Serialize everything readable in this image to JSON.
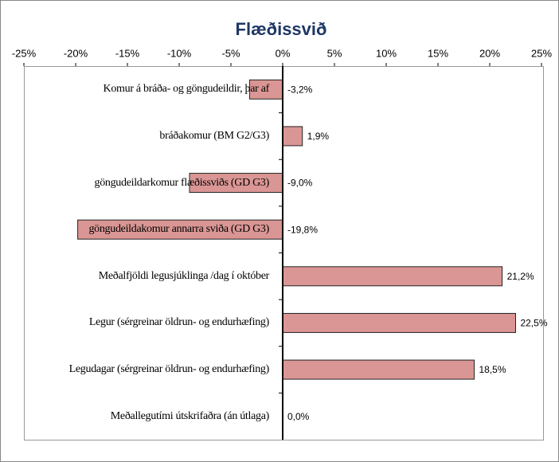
{
  "chart_data": {
    "type": "bar",
    "orientation": "horizontal",
    "title": "Flæðissvið",
    "categories": [
      "Komur á bráða- og göngudeildir, þar af",
      "bráðakomur (BM G2/G3)",
      "göngudeildarkomur flæðissviðs (GD G3)",
      "göngudeildakomur annarra sviða (GD G3)",
      "Meðalfjöldi legusjúklinga /dag í október",
      "Legur (sérgreinar öldrun- og endurhæfing)",
      "Legudagar (sérgreinar  öldrun- og endurhæfing)",
      "Meðallegutími útskrifaðra (án útlaga)"
    ],
    "values": [
      -3.2,
      1.9,
      -9.0,
      -19.8,
      21.2,
      22.5,
      18.5,
      0.0
    ],
    "value_labels": [
      "-3,2%",
      "1,9%",
      "-9,0%",
      "-19,8%",
      "21,2%",
      "22,5%",
      "18,5%",
      "0,0%"
    ],
    "color": "#da9694",
    "xlim": [
      -25,
      25
    ],
    "xticks": [
      {
        "value": -25,
        "label": "-25%"
      },
      {
        "value": -20,
        "label": "-20%"
      },
      {
        "value": -15,
        "label": "-15%"
      },
      {
        "value": -10,
        "label": "-10%"
      },
      {
        "value": -5,
        "label": "-5%"
      },
      {
        "value": 0,
        "label": "0%"
      },
      {
        "value": 5,
        "label": "5%"
      },
      {
        "value": 10,
        "label": "10%"
      },
      {
        "value": 15,
        "label": "15%"
      },
      {
        "value": 20,
        "label": "20%"
      },
      {
        "value": 25,
        "label": "25%"
      }
    ]
  }
}
